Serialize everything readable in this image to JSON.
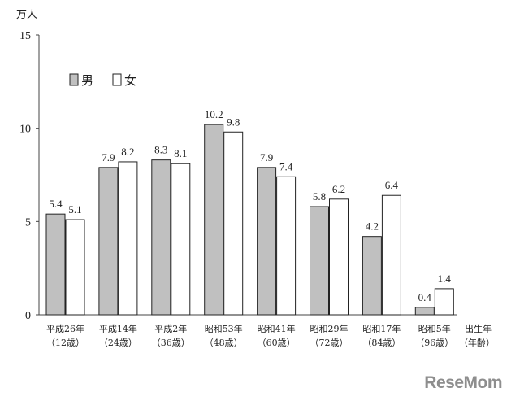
{
  "chart_data": {
    "type": "bar",
    "ylabel": "万人",
    "ylim": [
      0,
      15
    ],
    "yticks": [
      "0",
      "5",
      "10",
      "15"
    ],
    "categories": [
      [
        "平成26年",
        "（12歳）"
      ],
      [
        "平成14年",
        "（24歳）"
      ],
      [
        "平成2年",
        "（36歳）"
      ],
      [
        "昭和53年",
        "（48歳）"
      ],
      [
        "昭和41年",
        "（60歳）"
      ],
      [
        "昭和29年",
        "（72歳）"
      ],
      [
        "昭和17年",
        "（84歳）"
      ],
      [
        "昭和5年",
        "（96歳）"
      ]
    ],
    "xlabel": [
      "出生年",
      "（年齢）"
    ],
    "series": [
      {
        "name": "男",
        "color": "#c0c0c0",
        "values": [
          5.4,
          7.9,
          8.3,
          10.2,
          7.9,
          5.8,
          4.2,
          0.4
        ],
        "labels": [
          "5.4",
          "7.9",
          "8.3",
          "10.2",
          "7.9",
          "5.8",
          "4.2",
          "0.4"
        ]
      },
      {
        "name": "女",
        "color": "#ffffff",
        "values": [
          5.1,
          8.2,
          8.1,
          9.8,
          7.4,
          6.2,
          6.4,
          1.4
        ],
        "labels": [
          "5.1",
          "8.2",
          "8.1",
          "9.8",
          "7.4",
          "6.2",
          "6.4",
          "1.4"
        ]
      }
    ],
    "legend_position": "top-left",
    "grid": false
  },
  "watermark": "ReseMom"
}
